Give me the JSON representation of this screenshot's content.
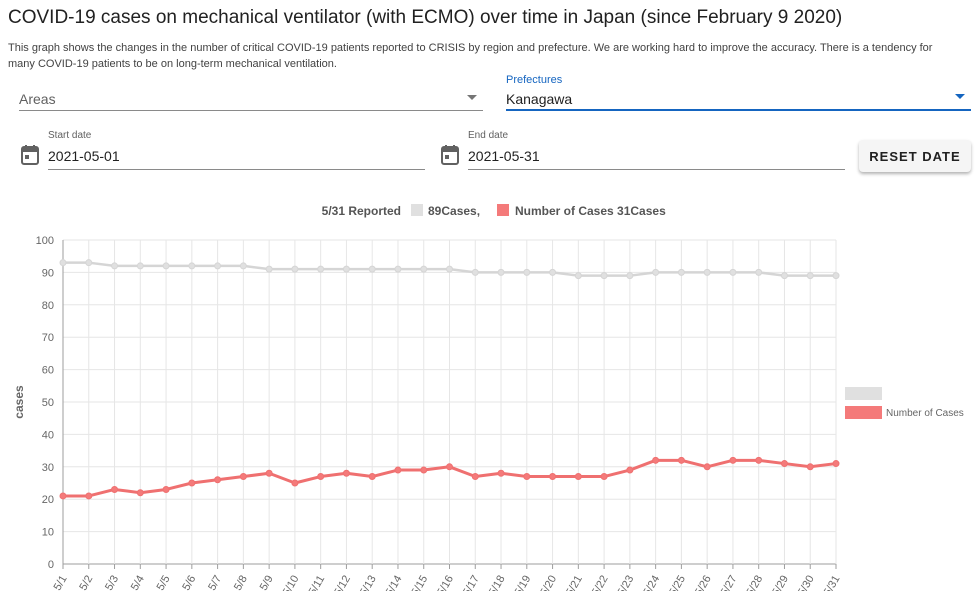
{
  "page": {
    "title": "COVID-19 cases on mechanical ventilator (with ECMO) over time in Japan (since February 9 2020)",
    "description": "This graph shows the changes in the number of critical COVID-19 patients reported to CRISIS by region and prefecture. We are working hard to improve the accuracy. There is a tendency for many COVID-19 patients to be on long-term mechanical ventilation."
  },
  "filters": {
    "areas": {
      "label": "Areas",
      "value": ""
    },
    "prefectures": {
      "label": "Prefectures",
      "value": "Kanagawa"
    },
    "start_date": {
      "label": "Start date",
      "value": "2021-05-01"
    },
    "end_date": {
      "label": "End date",
      "value": "2021-05-31"
    },
    "reset_label": "RESET DATE"
  },
  "icons": {
    "date": "calendar-icon",
    "dropdown": "arrow-drop-down-icon"
  },
  "colors": {
    "accent": "#1565c0",
    "total": "#e0e0e0",
    "total_line": "#d5d5d5",
    "cases": "#f47a7a",
    "cases_line": "#ef7070"
  },
  "chart_data": {
    "type": "line",
    "header": {
      "reported": "5/31 Reported",
      "total_label": "89Cases,",
      "cases_label": "Number of Cases 31Cases"
    },
    "categories": [
      "5/1",
      "5/2",
      "5/3",
      "5/4",
      "5/5",
      "5/6",
      "5/7",
      "5/8",
      "5/9",
      "5/10",
      "5/11",
      "5/12",
      "5/13",
      "5/14",
      "5/15",
      "5/16",
      "5/17",
      "5/18",
      "5/19",
      "5/20",
      "5/21",
      "5/22",
      "5/23",
      "5/24",
      "5/25",
      "5/26",
      "5/27",
      "5/28",
      "5/29",
      "5/30",
      "5/31"
    ],
    "series": [
      {
        "name": "",
        "values": [
          93,
          93,
          92,
          92,
          92,
          92,
          92,
          92,
          91,
          91,
          91,
          91,
          91,
          91,
          91,
          91,
          90,
          90,
          90,
          90,
          89,
          89,
          89,
          90,
          90,
          90,
          90,
          90,
          89,
          89,
          89
        ]
      },
      {
        "name": "Number of Cases",
        "values": [
          21,
          21,
          23,
          22,
          23,
          25,
          26,
          27,
          28,
          25,
          27,
          28,
          27,
          29,
          29,
          30,
          27,
          28,
          27,
          27,
          27,
          27,
          29,
          32,
          32,
          30,
          32,
          32,
          31,
          30,
          31
        ]
      }
    ],
    "ylabel": "cases",
    "xlabel": "",
    "ylim": [
      0,
      100
    ],
    "yticks": [
      0,
      10,
      20,
      30,
      40,
      50,
      60,
      70,
      80,
      90,
      100
    ],
    "grid": true,
    "legend_position": "right"
  }
}
